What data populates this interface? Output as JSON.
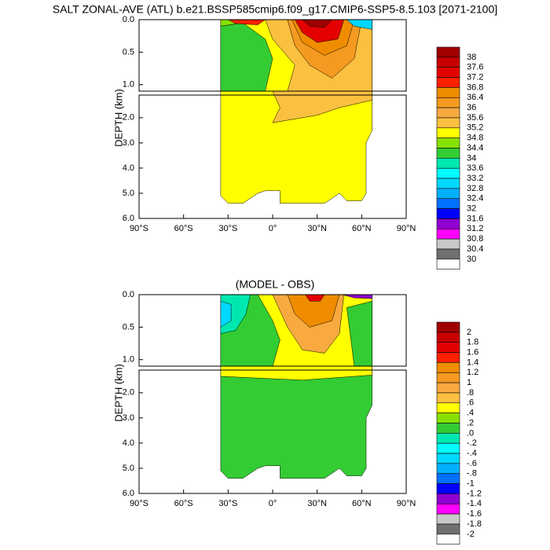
{
  "chart_data": [
    {
      "type": "contour",
      "title": "SALT ZONAL-AVE (ATL) b.e21.BSSP585cmip6.f09_g17.CMIP6-SSP5-8.5.103 [2071-2100]",
      "y_label": "DEPTH (km)",
      "xlim": [
        -90,
        90
      ],
      "xticks": [
        {
          "value": -90,
          "label": "90°S"
        },
        {
          "value": -60,
          "label": "60°S"
        },
        {
          "value": -30,
          "label": "30°S"
        },
        {
          "value": 0,
          "label": "0°"
        },
        {
          "value": 30,
          "label": "30°N"
        },
        {
          "value": 60,
          "label": "60°N"
        },
        {
          "value": 90,
          "label": "90°N"
        }
      ],
      "ylim": [
        0,
        6
      ],
      "yticks": [
        {
          "value": 0,
          "label": "0.0"
        },
        0.5,
        {
          "value": 1,
          "label": "1.0"
        },
        {
          "value": 2,
          "label": "2.0"
        },
        {
          "value": 3,
          "label": "3.0"
        },
        {
          "value": 4,
          "label": "4.0"
        },
        {
          "value": 5,
          "label": "5.0"
        },
        {
          "value": 6,
          "label": "6.0"
        }
      ],
      "levels": [
        38,
        37.6,
        37.2,
        36.8,
        36.4,
        36,
        35.6,
        35.2,
        34.8,
        34.4,
        34,
        33.6,
        33.2,
        32.8,
        32.4,
        32,
        31.6,
        31.2,
        30.8,
        30.4,
        30
      ],
      "colors": [
        "#a00000",
        "#c80000",
        "#e40000",
        "#ff2000",
        "#f08c00",
        "#f59a20",
        "#f8aa40",
        "#fcc040",
        "#ffff00",
        "#88e000",
        "#33cc33",
        "#00e8b0",
        "#00ffff",
        "#00d8ff",
        "#00b0ff",
        "#0070ff",
        "#0000ff",
        "#9000d0",
        "#ff00ff",
        "#c8c8c8",
        "#707070",
        "#ffffff"
      ]
    },
    {
      "type": "contour",
      "title": "(MODEL - OBS)",
      "y_label": "DEPTH (km)",
      "xlim": [
        -90,
        90
      ],
      "xticks": [
        {
          "value": -90,
          "label": "90°S"
        },
        {
          "value": -60,
          "label": "60°S"
        },
        {
          "value": -30,
          "label": "30°S"
        },
        {
          "value": 0,
          "label": "0°"
        },
        {
          "value": 30,
          "label": "30°N"
        },
        {
          "value": 60,
          "label": "60°N"
        },
        {
          "value": 90,
          "label": "90°N"
        }
      ],
      "ylim": [
        0,
        6
      ],
      "yticks": [
        {
          "value": 0,
          "label": "0.0"
        },
        0.5,
        {
          "value": 1,
          "label": "1.0"
        },
        {
          "value": 2,
          "label": "2.0"
        },
        {
          "value": 3,
          "label": "3.0"
        },
        {
          "value": 4,
          "label": "4.0"
        },
        {
          "value": 5,
          "label": "5.0"
        },
        {
          "value": 6,
          "label": "6.0"
        }
      ],
      "levels": [
        2,
        1.8,
        1.6,
        1.4,
        1.2,
        1,
        {
          "value": 0.8,
          "label": ".8"
        },
        {
          "value": 0.6,
          "label": ".6"
        },
        {
          "value": 0.4,
          "label": ".4"
        },
        {
          "value": 0.2,
          "label": ".2"
        },
        {
          "value": 0,
          "label": ".0"
        },
        {
          "value": -0.2,
          "label": "-.2"
        },
        {
          "value": -0.4,
          "label": "-.4"
        },
        {
          "value": -0.6,
          "label": "-.6"
        },
        {
          "value": -0.8,
          "label": "-.8"
        },
        -1,
        -1.2,
        -1.4,
        -1.6,
        -1.8,
        -2
      ],
      "colors": [
        "#a00000",
        "#c80000",
        "#e40000",
        "#ff2000",
        "#f08c00",
        "#f59a20",
        "#f8aa40",
        "#fcc040",
        "#ffff00",
        "#88e000",
        "#33cc33",
        "#00e8b0",
        "#00ffff",
        "#00d8ff",
        "#00b0ff",
        "#0070ff",
        "#0000ff",
        "#9000d0",
        "#ff00ff",
        "#c8c8c8",
        "#707070",
        "#ffffff"
      ]
    }
  ]
}
